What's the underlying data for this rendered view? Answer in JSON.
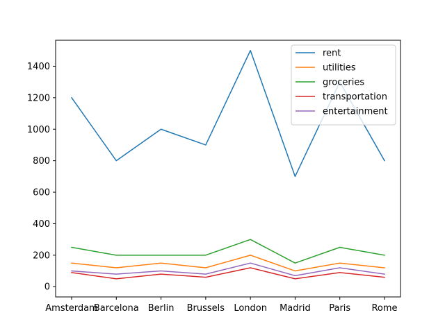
{
  "chart_data": {
    "type": "line",
    "title": "",
    "xlabel": "",
    "ylabel": "",
    "categories": [
      "Amsterdam",
      "Barcelona",
      "Berlin",
      "Brussels",
      "London",
      "Madrid",
      "Paris",
      "Rome"
    ],
    "ylim": [
      -65,
      1565
    ],
    "yticks": [
      0,
      200,
      400,
      600,
      800,
      1000,
      1200,
      1400
    ],
    "grid": false,
    "legend_position": "top-right",
    "series": [
      {
        "name": "rent",
        "color": "#1f77b4",
        "values": [
          1200,
          800,
          1000,
          900,
          1500,
          700,
          1300,
          800
        ]
      },
      {
        "name": "utilities",
        "color": "#ff7f0e",
        "values": [
          150,
          120,
          150,
          120,
          200,
          100,
          150,
          120
        ]
      },
      {
        "name": "groceries",
        "color": "#2ca02c",
        "values": [
          250,
          200,
          200,
          200,
          300,
          150,
          250,
          200
        ]
      },
      {
        "name": "transportation",
        "color": "#d62728",
        "values": [
          90,
          50,
          80,
          60,
          120,
          50,
          90,
          60
        ]
      },
      {
        "name": "entertainment",
        "color": "#9467bd",
        "values": [
          100,
          80,
          100,
          80,
          150,
          70,
          120,
          80
        ]
      }
    ]
  }
}
